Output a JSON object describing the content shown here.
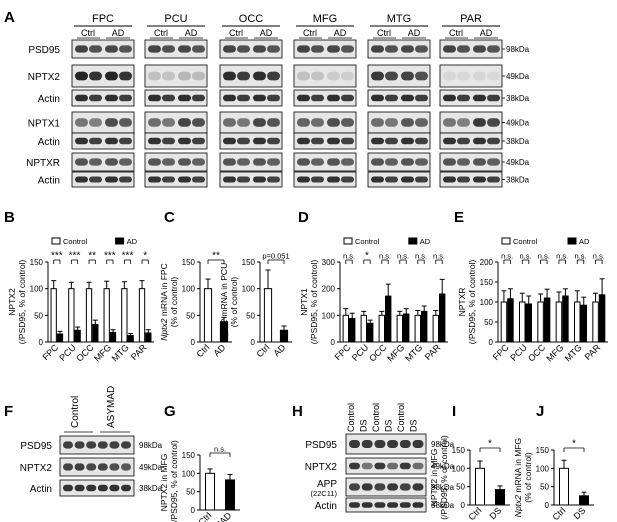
{
  "panel_letters": [
    "A",
    "B",
    "C",
    "D",
    "E",
    "F",
    "G",
    "H",
    "I",
    "J"
  ],
  "panel_a": {
    "regions": [
      "FPC",
      "PCU",
      "OCC",
      "MFG",
      "MTG",
      "PAR"
    ],
    "conditions": [
      "Ctrl",
      "AD"
    ],
    "rows": [
      {
        "label": "PSD95",
        "marker": "98kDa",
        "intensity": [
          0.8,
          0.78,
          0.8,
          0.78,
          0.8,
          0.78,
          0.8,
          0.78,
          0.8,
          0.78,
          0.8,
          0.78
        ]
      },
      {
        "label": "NPTX2",
        "marker": "49kDa",
        "intensity": [
          0.95,
          0.95,
          0.2,
          0.25,
          0.9,
          0.9,
          0.2,
          0.15,
          0.85,
          0.8,
          0.1,
          0.1
        ]
      },
      {
        "label": "Actin",
        "marker": "38kDa",
        "intensity": [
          0.9,
          0.9,
          0.9,
          0.9,
          0.9,
          0.9,
          0.9,
          0.9,
          0.9,
          0.9,
          0.9,
          0.9
        ]
      },
      {
        "label": "NPTX1",
        "marker": "49kDa",
        "intensity": [
          0.55,
          0.75,
          0.6,
          0.8,
          0.6,
          0.78,
          0.65,
          0.75,
          0.6,
          0.7,
          0.55,
          0.85
        ]
      },
      {
        "label": "Actin",
        "marker": "38kDa",
        "intensity": [
          0.88,
          0.88,
          0.88,
          0.88,
          0.88,
          0.88,
          0.88,
          0.88,
          0.88,
          0.88,
          0.88,
          0.88
        ]
      },
      {
        "label": "NPTXR",
        "marker": "49kDa",
        "intensity": [
          0.72,
          0.72,
          0.72,
          0.72,
          0.72,
          0.72,
          0.72,
          0.72,
          0.72,
          0.72,
          0.72,
          0.72
        ]
      },
      {
        "label": "Actin",
        "marker": "38kDa",
        "intensity": [
          0.88,
          0.88,
          0.88,
          0.88,
          0.88,
          0.88,
          0.88,
          0.88,
          0.88,
          0.88,
          0.88,
          0.88
        ]
      }
    ]
  },
  "chart_data": [
    {
      "id": "B",
      "type": "bar",
      "ylabel": "NPTX2\n(/PSD95, % of control)",
      "ylim": [
        0,
        150
      ],
      "yticks": [
        0,
        50,
        100,
        150
      ],
      "legend": [
        "Control",
        "AD"
      ],
      "categories": [
        "FPC",
        "PCU",
        "OCC",
        "MFG",
        "MTG",
        "PAR"
      ],
      "series": [
        {
          "name": "Control",
          "values": [
            100,
            100,
            100,
            100,
            100,
            100
          ],
          "errors": [
            15,
            12,
            12,
            14,
            13,
            15
          ]
        },
        {
          "name": "AD",
          "values": [
            15,
            22,
            33,
            18,
            12,
            17
          ],
          "errors": [
            5,
            6,
            8,
            5,
            4,
            6
          ]
        }
      ],
      "significance": [
        "***",
        "***",
        "**",
        "***",
        "***",
        "*"
      ]
    },
    {
      "id": "C1",
      "type": "bar",
      "ylabel": "Nptx2 mRNA in FPC\n(% of control)",
      "ylim": [
        0,
        150
      ],
      "yticks": [
        0,
        50,
        100,
        150
      ],
      "categories": [
        "Ctrl",
        "AD"
      ],
      "values": [
        100,
        38
      ],
      "errors": [
        18,
        8
      ],
      "significance": "**"
    },
    {
      "id": "C2",
      "type": "bar",
      "ylabel": "Nptx2 mRNA in PCU\n(% of control)",
      "ylim": [
        0,
        150
      ],
      "yticks": [
        0,
        50,
        100,
        150
      ],
      "categories": [
        "Ctrl",
        "AD"
      ],
      "values": [
        100,
        22
      ],
      "errors": [
        35,
        8
      ],
      "significance": "p=0.051"
    },
    {
      "id": "D",
      "type": "bar",
      "ylabel": "NPTX1\n(/PSD95, % of control)",
      "ylim": [
        0,
        300
      ],
      "yticks": [
        0,
        100,
        200,
        300
      ],
      "legend": [
        "Control",
        "AD"
      ],
      "categories": [
        "FPC",
        "PCU",
        "OCC",
        "MFG",
        "MTG",
        "PAR"
      ],
      "series": [
        {
          "name": "Control",
          "values": [
            100,
            100,
            100,
            100,
            100,
            100
          ],
          "errors": [
            25,
            15,
            15,
            15,
            18,
            18
          ]
        },
        {
          "name": "AD",
          "values": [
            88,
            70,
            172,
            105,
            115,
            180
          ],
          "errors": [
            20,
            12,
            45,
            20,
            20,
            55
          ]
        }
      ],
      "significance": [
        "n.s.",
        "*",
        "n.s.",
        "n.s.",
        "n.s.",
        "n.s."
      ]
    },
    {
      "id": "E",
      "type": "bar",
      "ylabel": "NPTXR\n(/PSD95, % of control)",
      "ylim": [
        0,
        200
      ],
      "yticks": [
        0,
        50,
        100,
        150,
        200
      ],
      "legend": [
        "Control",
        "AD"
      ],
      "categories": [
        "FPC",
        "PCU",
        "OCC",
        "MFG",
        "MTG",
        "PAR"
      ],
      "series": [
        {
          "name": "Control",
          "values": [
            100,
            100,
            100,
            100,
            100,
            100
          ],
          "errors": [
            28,
            22,
            20,
            25,
            28,
            22
          ]
        },
        {
          "name": "AD",
          "values": [
            108,
            95,
            110,
            115,
            92,
            118
          ],
          "errors": [
            25,
            20,
            22,
            18,
            20,
            40
          ]
        }
      ],
      "significance": [
        "n.s.",
        "n.s.",
        "n.s.",
        "n.s.",
        "n.s.",
        "n.s."
      ]
    },
    {
      "id": "G",
      "type": "bar",
      "ylabel": "NPTX2 in MFG\n(/PSD95, % of control)",
      "ylim": [
        0,
        150
      ],
      "yticks": [
        0,
        50,
        100,
        150
      ],
      "categories": [
        "Ctrl",
        "ASYMAD"
      ],
      "values": [
        100,
        82
      ],
      "errors": [
        12,
        15
      ],
      "significance": "n.s."
    },
    {
      "id": "I",
      "type": "bar",
      "ylabel": "NPTX2 in MFG\n(/PSD95, % of control)",
      "ylim": [
        0,
        150
      ],
      "yticks": [
        0,
        50,
        100,
        150
      ],
      "categories": [
        "Ctrl",
        "DS"
      ],
      "values": [
        100,
        42
      ],
      "errors": [
        20,
        10
      ],
      "significance": "*"
    },
    {
      "id": "J",
      "type": "bar",
      "ylabel": "Nptx2 mRNA in MFG\n(% of control)",
      "ylim": [
        0,
        150
      ],
      "yticks": [
        0,
        50,
        100,
        150
      ],
      "categories": [
        "Ctrl",
        "DS"
      ],
      "values": [
        100,
        25
      ],
      "errors": [
        22,
        10
      ],
      "significance": "*"
    }
  ],
  "panel_f": {
    "groups": [
      "Control",
      "ASYMAD"
    ],
    "rows": [
      {
        "label": "PSD95",
        "marker": "98kDa",
        "intensity": [
          0.82,
          0.82,
          0.82,
          0.82,
          0.82,
          0.82
        ]
      },
      {
        "label": "NPTX2",
        "marker": "49kDa",
        "intensity": [
          0.8,
          0.82,
          0.78,
          0.8,
          0.75,
          0.7
        ]
      },
      {
        "label": "Actin",
        "marker": "38kDa",
        "intensity": [
          0.88,
          0.88,
          0.88,
          0.88,
          0.88,
          0.88
        ]
      }
    ]
  },
  "panel_h": {
    "lanes": [
      "Control",
      "DS",
      "Control",
      "DS",
      "Control",
      "DS"
    ],
    "rows": [
      {
        "label": "PSD95",
        "sublabel": "",
        "marker": "98kDa",
        "intensity": [
          0.85,
          0.85,
          0.85,
          0.85,
          0.85,
          0.85
        ]
      },
      {
        "label": "NPTX2",
        "sublabel": "",
        "marker": "49kDa",
        "intensity": [
          0.85,
          0.55,
          0.85,
          0.6,
          0.85,
          0.6
        ]
      },
      {
        "label": "APP",
        "sublabel": "(22C11)",
        "marker": "98kDa",
        "intensity": [
          0.8,
          0.85,
          0.8,
          0.85,
          0.8,
          0.85
        ]
      },
      {
        "label": "Actin",
        "sublabel": "",
        "marker": "38kDa",
        "intensity": [
          0.88,
          0.88,
          0.88,
          0.88,
          0.88,
          0.88
        ]
      }
    ]
  }
}
